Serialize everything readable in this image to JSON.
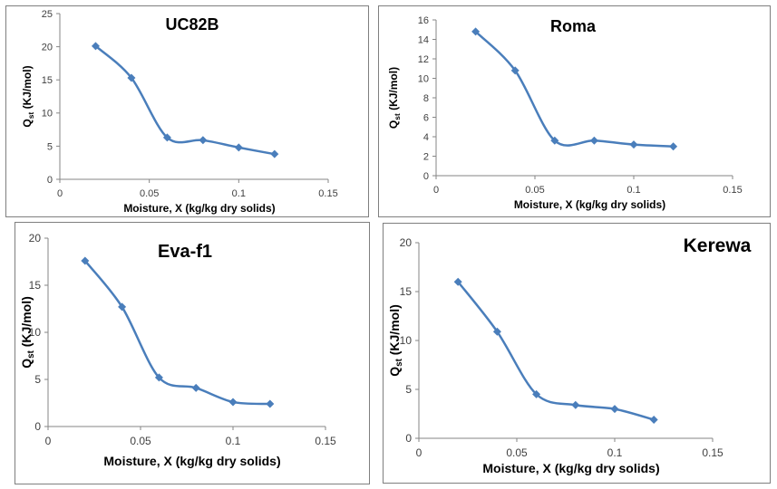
{
  "chart_data": [
    {
      "type": "line",
      "title": "UC82B",
      "xlabel": "Moisture, X (kg/kg dry solids)",
      "ylabel_main": "Q",
      "ylabel_sub": "st",
      "ylabel_unit": " (KJ/mol)",
      "xlim": [
        0,
        0.15
      ],
      "ylim": [
        0,
        25
      ],
      "xticks": [
        0,
        0.05,
        0.1,
        0.15
      ],
      "xtick_labels": [
        "0",
        "0.05",
        "0.1",
        "0.15"
      ],
      "yticks": [
        0,
        5,
        10,
        15,
        20,
        25
      ],
      "ytick_labels": [
        "0",
        "5",
        "10",
        "15",
        "20",
        "25"
      ],
      "x": [
        0.02,
        0.04,
        0.06,
        0.08,
        0.1,
        0.12
      ],
      "y": [
        20.1,
        15.3,
        6.3,
        5.9,
        4.8,
        3.8
      ],
      "color": "#4a7ebb"
    },
    {
      "type": "line",
      "title": "Roma",
      "xlabel": "Moisture, X (kg/kg dry solids)",
      "ylabel_main": "Q",
      "ylabel_sub": "st",
      "ylabel_unit": " (KJ/mol)",
      "xlim": [
        0,
        0.15
      ],
      "ylim": [
        0,
        16
      ],
      "xticks": [
        0,
        0.05,
        0.1,
        0.15
      ],
      "xtick_labels": [
        "0",
        "0.05",
        "0.1",
        "0.15"
      ],
      "yticks": [
        0,
        2,
        4,
        6,
        8,
        10,
        12,
        14,
        16
      ],
      "ytick_labels": [
        "0",
        "2",
        "4",
        "6",
        "8",
        "10",
        "12",
        "14",
        "16"
      ],
      "x": [
        0.02,
        0.04,
        0.06,
        0.08,
        0.1,
        0.12
      ],
      "y": [
        14.8,
        10.8,
        3.6,
        3.6,
        3.2,
        3.0
      ],
      "color": "#4a7ebb"
    },
    {
      "type": "line",
      "title": "Eva-f1",
      "xlabel": "Moisture, X (kg/kg dry solids)",
      "ylabel_main": "Q",
      "ylabel_sub": "st",
      "ylabel_unit": " (KJ/mol)",
      "xlim": [
        0,
        0.15
      ],
      "ylim": [
        0,
        20
      ],
      "xticks": [
        0,
        0.05,
        0.1,
        0.15
      ],
      "xtick_labels": [
        "0",
        "0.05",
        "0.1",
        "0.15"
      ],
      "yticks": [
        0,
        5,
        10,
        15,
        20
      ],
      "ytick_labels": [
        "0",
        "5",
        "10",
        "15",
        "20"
      ],
      "x": [
        0.02,
        0.04,
        0.06,
        0.08,
        0.1,
        0.12
      ],
      "y": [
        17.6,
        12.7,
        5.2,
        4.1,
        2.6,
        2.4
      ],
      "color": "#4a7ebb"
    },
    {
      "type": "line",
      "title": "Kerewa",
      "xlabel": "Moisture, X (kg/kg dry solids)",
      "ylabel_main": "Q",
      "ylabel_sub": "st",
      "ylabel_unit": " (KJ/mol)",
      "xlim": [
        0,
        0.15
      ],
      "ylim": [
        0,
        20
      ],
      "xticks": [
        0,
        0.05,
        0.1,
        0.15
      ],
      "xtick_labels": [
        "0",
        "0.05",
        "0.1",
        "0.15"
      ],
      "yticks": [
        0,
        5,
        10,
        15,
        20
      ],
      "ytick_labels": [
        "0",
        "5",
        "10",
        "15",
        "20"
      ],
      "x": [
        0.02,
        0.04,
        0.06,
        0.08,
        0.1,
        0.12
      ],
      "y": [
        16.0,
        10.9,
        4.5,
        3.4,
        3.0,
        1.9
      ],
      "color": "#4a7ebb"
    }
  ]
}
